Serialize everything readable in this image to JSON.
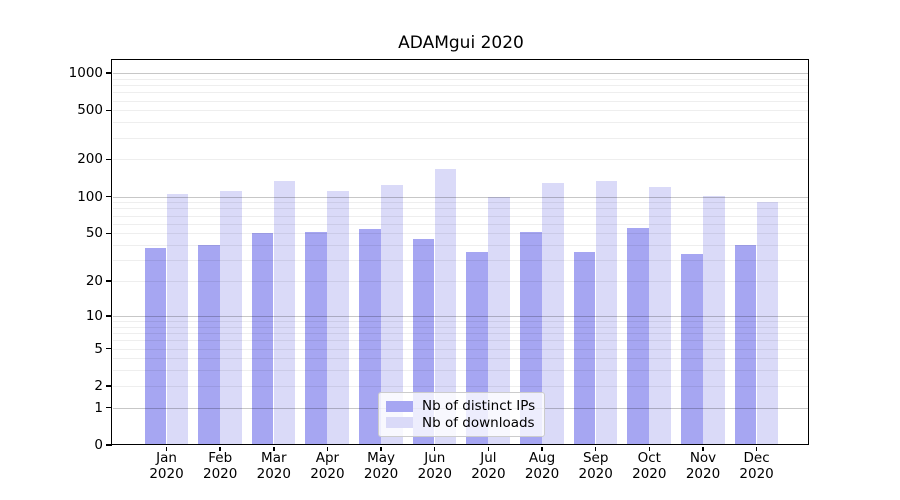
{
  "chart_data": {
    "type": "bar",
    "title": "ADAMgui 2020",
    "categories": [
      "Jan",
      "Feb",
      "Mar",
      "Apr",
      "May",
      "Jun",
      "Jul",
      "Aug",
      "Sep",
      "Oct",
      "Nov",
      "Dec"
    ],
    "category_year_label": "2020",
    "series": [
      {
        "name": "Nb of distinct IPs",
        "color": "#a6a6f2",
        "values": [
          38,
          40,
          50,
          51,
          54,
          45,
          35,
          51,
          35,
          55,
          34,
          40
        ]
      },
      {
        "name": "Nb of downloads",
        "color": "#dadaf8",
        "values": [
          104,
          112,
          134,
          110,
          124,
          166,
          100,
          129,
          134,
          120,
          101,
          91
        ]
      }
    ],
    "xlabel": "",
    "ylabel": "",
    "y_scale": "log10(1+v)",
    "ylim": [
      0,
      1250
    ],
    "y_ticks": [
      0,
      1,
      2,
      5,
      10,
      20,
      50,
      100,
      200,
      500,
      1000
    ],
    "grid": {
      "on": true,
      "major_values": [
        1,
        10,
        100,
        1000
      ],
      "minor_values": [
        2,
        3,
        4,
        5,
        6,
        7,
        8,
        9,
        20,
        30,
        40,
        50,
        60,
        70,
        80,
        90,
        200,
        300,
        400,
        500,
        600,
        700,
        800,
        900
      ]
    },
    "legend_position": "lower-center"
  },
  "colors": {
    "bar_distinct_ips": "#a6a6f2",
    "bar_downloads": "#dadaf8",
    "grid_major": "#c6c6c6",
    "grid_minor": "#eeeeee",
    "axis": "#000000",
    "legend_border": "#cccccc"
  }
}
